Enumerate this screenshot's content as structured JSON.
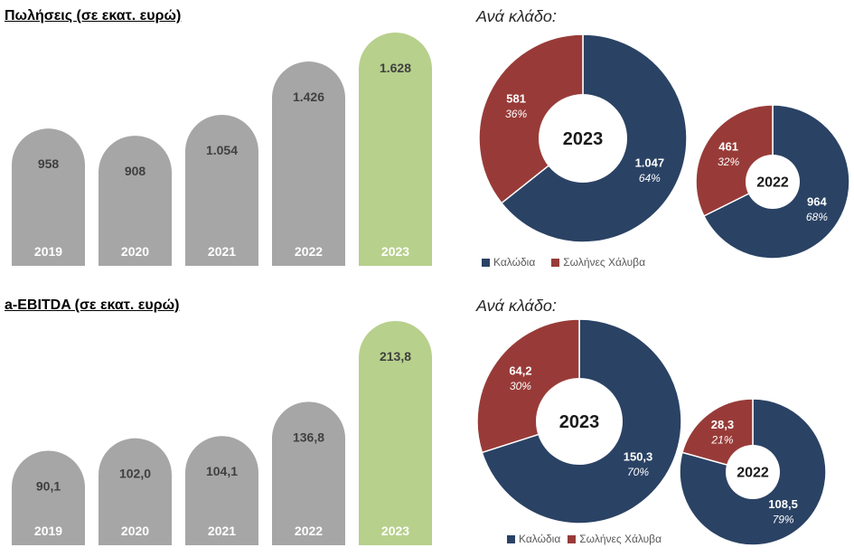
{
  "chart_data": [
    {
      "type": "bar",
      "title": "Πωλήσεις (σε εκατ. ευρώ)",
      "categories": [
        "2019",
        "2020",
        "2021",
        "2022",
        "2023"
      ],
      "values": [
        958,
        908,
        1054,
        1426,
        1628
      ],
      "value_labels": [
        "958",
        "908",
        "1.054",
        "1.426",
        "1.628"
      ],
      "bar_colors": [
        "#a6a6a6",
        "#a6a6a6",
        "#a6a6a6",
        "#a6a6a6",
        "#b7d08c"
      ]
    },
    {
      "type": "pie",
      "donut": true,
      "heading": "Ανά κλάδο:",
      "legend": [
        "Καλώδια",
        "Σωλήνες Χάλυβα"
      ],
      "legend_placement": "bottom-left",
      "series_colors": [
        "#2a4264",
        "#983b38"
      ],
      "pies": [
        {
          "center_label": "2023",
          "values": [
            1047,
            581
          ],
          "value_labels": [
            "1.047",
            "581"
          ],
          "percent_labels": [
            "64%",
            "36%"
          ]
        },
        {
          "center_label": "2022",
          "values": [
            964,
            461
          ],
          "value_labels": [
            "964",
            "461"
          ],
          "percent_labels": [
            "68%",
            "32%"
          ]
        }
      ]
    },
    {
      "type": "bar",
      "title": "a-EBITDA (σε εκατ. ευρώ)",
      "categories": [
        "2019",
        "2020",
        "2021",
        "2022",
        "2023"
      ],
      "values": [
        90.1,
        102.0,
        104.1,
        136.8,
        213.8
      ],
      "value_labels": [
        "90,1",
        "102,0",
        "104,1",
        "136,8",
        "213,8"
      ],
      "bar_colors": [
        "#a6a6a6",
        "#a6a6a6",
        "#a6a6a6",
        "#a6a6a6",
        "#b7d08c"
      ]
    },
    {
      "type": "pie",
      "donut": true,
      "heading": "Ανά κλάδο:",
      "legend": [
        "Καλώδια",
        "Σωλήνες Χάλυβα"
      ],
      "legend_placement": "bottom-left",
      "series_colors": [
        "#2a4264",
        "#983b38"
      ],
      "pies": [
        {
          "center_label": "2023",
          "values": [
            150.3,
            64.2
          ],
          "value_labels": [
            "150,3",
            "64,2"
          ],
          "percent_labels": [
            "70%",
            "30%"
          ]
        },
        {
          "center_label": "2022",
          "values": [
            108.5,
            28.3
          ],
          "value_labels": [
            "108,5",
            "28,3"
          ],
          "percent_labels": [
            "79%",
            "21%"
          ]
        }
      ]
    }
  ]
}
